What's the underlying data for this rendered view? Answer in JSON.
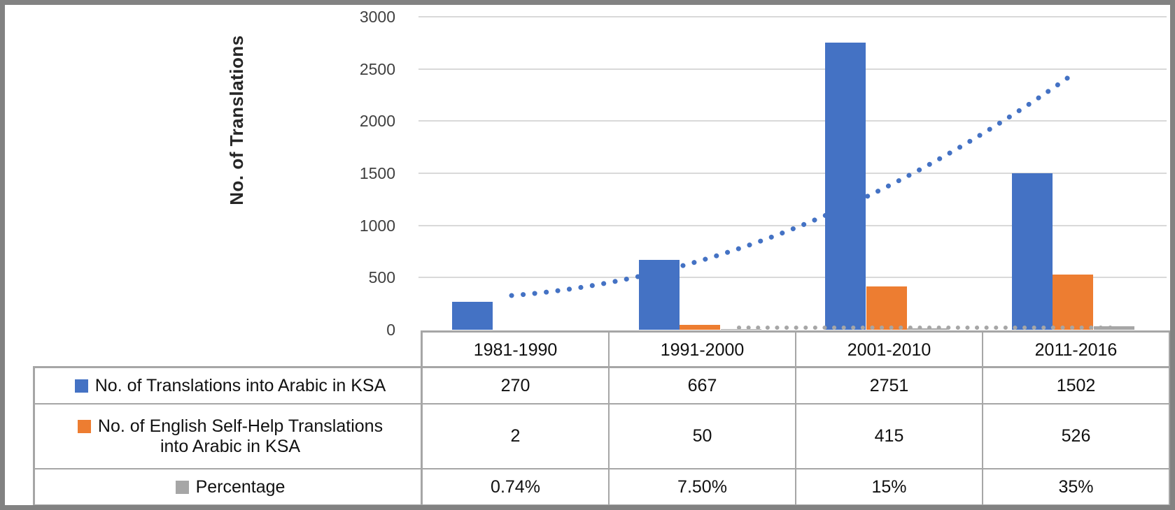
{
  "frame": {
    "border_color": "#828282",
    "background": "#ffffff"
  },
  "chart_data": {
    "type": "bar",
    "title": "",
    "xlabel": "",
    "ylabel": "No. of Translations",
    "ylim": [
      0,
      3000
    ],
    "yticks": [
      0,
      500,
      1000,
      1500,
      2000,
      2500,
      3000
    ],
    "grid": "horizontal",
    "legend_position": "table-left",
    "categories": [
      "1981-1990",
      "1991-2000",
      "2001-2010",
      "2011-2016"
    ],
    "series": [
      {
        "name": "No. of Translations into Arabic in KSA",
        "type": "bar",
        "color": "#4472C4",
        "values": [
          270,
          667,
          2751,
          1502
        ]
      },
      {
        "name": "No. of English Self-Help Translations into Arabic in KSA",
        "type": "bar",
        "color": "#ED7D31",
        "values": [
          2,
          50,
          415,
          526
        ]
      },
      {
        "name": "Percentage",
        "type": "bar",
        "color": "#A6A6A6",
        "values": [
          0.74,
          7.5,
          15,
          35
        ],
        "display_values": [
          "0.74%",
          "7.50%",
          "15%",
          "35%"
        ]
      }
    ],
    "trendlines": [
      {
        "series": "No. of Translations into Arabic in KSA",
        "style": "dotted",
        "color": "#4472C4"
      },
      {
        "series": "Percentage",
        "style": "dotted",
        "color": "#A6A6A6"
      }
    ]
  },
  "axis": {
    "ylabel": "No. of Translations",
    "tick_labels": [
      "0",
      "500",
      "1000",
      "1500",
      "2000",
      "2500",
      "3000"
    ],
    "tick_color": "#404040",
    "gridline_color": "#D9D9D9"
  },
  "table": {
    "border_color": "#A6A6A6",
    "row_labels": [
      {
        "legend_color": "#4472C4",
        "line1": "No. of Translations into Arabic in KSA",
        "line2": ""
      },
      {
        "legend_color": "#ED7D31",
        "line1": "No. of English Self-Help Translations",
        "line2": "into Arabic in KSA"
      },
      {
        "legend_color": "#A6A6A6",
        "line1": "Percentage",
        "line2": ""
      }
    ],
    "columns": [
      {
        "header": "1981-1990",
        "values": [
          "270",
          "2",
          "0.74%"
        ]
      },
      {
        "header": "1991-2000",
        "values": [
          "667",
          "50",
          "7.50%"
        ]
      },
      {
        "header": "2001-2010",
        "values": [
          "2751",
          "415",
          "15%"
        ]
      },
      {
        "header": "2011-2016",
        "values": [
          "1502",
          "526",
          "35%"
        ]
      }
    ]
  }
}
